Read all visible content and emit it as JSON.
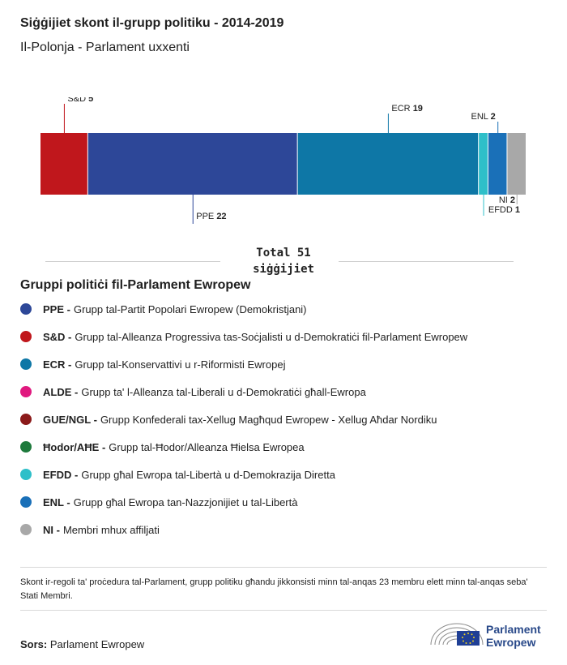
{
  "header": {
    "title": "Siġġijiet skont il-grupp politiku - 2014-2019",
    "subtitle": "Il-Polonja - Parlament uxxenti"
  },
  "chart_data": {
    "type": "bar",
    "orientation": "horizontal-stacked",
    "total": 51,
    "segments": [
      {
        "label": "S&D",
        "value": 5,
        "color": "#c0171c",
        "label_position": "above"
      },
      {
        "label": "PPE",
        "value": 22,
        "color": "#2d4798",
        "label_position": "below"
      },
      {
        "label": "ECR",
        "value": 19,
        "color": "#0e77a6",
        "label_position": "above"
      },
      {
        "label": "EFDD",
        "value": 1,
        "color": "#2ebfc9",
        "label_position": "below"
      },
      {
        "label": "ENL",
        "value": 2,
        "color": "#1a70b8",
        "label_position": "above"
      },
      {
        "label": "NI",
        "value": 2,
        "color": "#a8a8a8",
        "label_position": "below"
      }
    ]
  },
  "total": {
    "line1": "Total 51",
    "line2": "siġġijiet"
  },
  "legend": {
    "heading": "Gruppi politiċi fil-Parlament Ewropew",
    "items": [
      {
        "abbr": "PPE -",
        "desc": "Grupp tal-Partit Popolari Ewropew (Demokristjani)",
        "color": "#2d4798"
      },
      {
        "abbr": "S&D -",
        "desc": "Grupp tal-Alleanza Progressiva tas-Soċjalisti u d-Demokratiċi fil-Parlament Ewropew",
        "color": "#c0171c"
      },
      {
        "abbr": "ECR -",
        "desc": "Grupp tal-Konservattivi u r-Riformisti Ewropej",
        "color": "#0e77a6"
      },
      {
        "abbr": "ALDE -",
        "desc": "Grupp ta' l-Alleanza tal-Liberali u d-Demokratiċi għall-Ewropa",
        "color": "#e0197f"
      },
      {
        "abbr": "GUE/NGL -",
        "desc": "Grupp Konfederali tax-Xellug Magħqud Ewropew - Xellug Aħdar Nordiku",
        "color": "#8b1a1a"
      },
      {
        "abbr": "Ħodor/AĦE -",
        "desc": "Grupp tal-Ħodor/Alleanza Ħielsa Ewropea",
        "color": "#1e7a3c"
      },
      {
        "abbr": "EFDD -",
        "desc": "Grupp għal Ewropa tal-Libertà u d-Demokrazija Diretta",
        "color": "#2ebfc9"
      },
      {
        "abbr": "ENL -",
        "desc": "Grupp għal Ewropa tan-Nazzjonijiet u tal-Libertà",
        "color": "#1a70b8"
      },
      {
        "abbr": "NI -",
        "desc": "Membri mhux affiljati",
        "color": "#a8a8a8"
      }
    ]
  },
  "note": "Skont ir-regoli ta' proċedura tal-Parlament, grupp politiku għandu jikkonsisti minn tal-anqas 23 membru elett minn tal-anqas seba' Stati Membri.",
  "source": {
    "label": "Sors:",
    "value": "Parlament Ewropew"
  },
  "logo": {
    "line1": "Parlament",
    "line2": "Ewropew"
  }
}
